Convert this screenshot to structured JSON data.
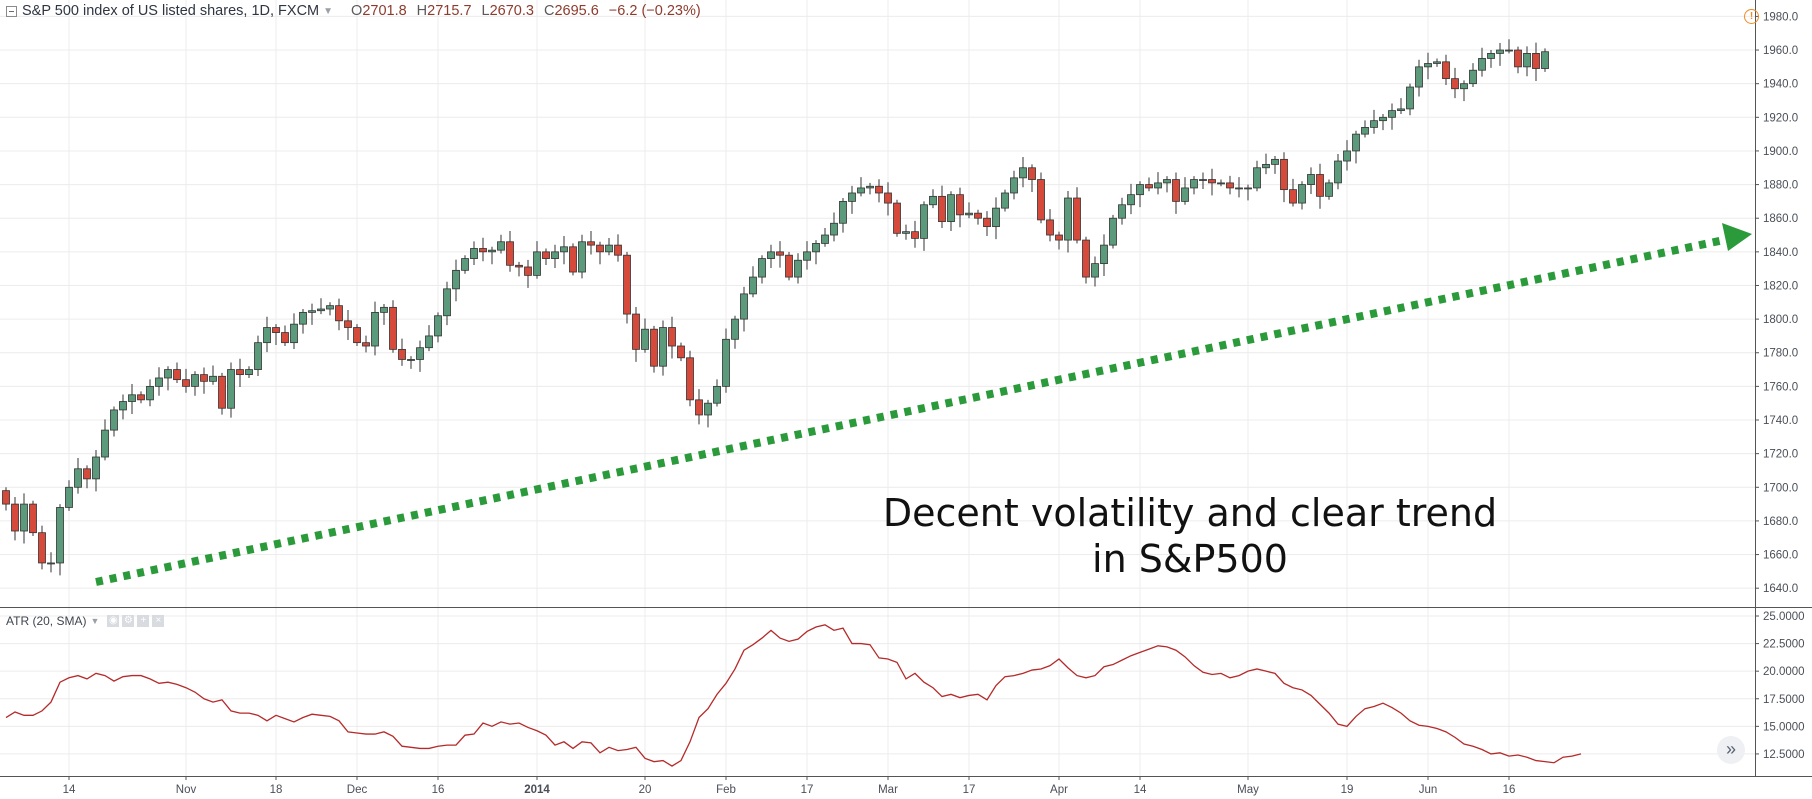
{
  "header": {
    "title": "S&P 500 index of US listed shares, 1D, FXCM",
    "open_key": "O",
    "open": "2701.8",
    "high_key": "H",
    "high": "2715.7",
    "low_key": "L",
    "low": "2670.3",
    "close_key": "C",
    "close": "2695.6",
    "change": "−6.2 (−0.23%)"
  },
  "indicator": {
    "label": "ATR (20, SMA)"
  },
  "annotation": {
    "line1": "Decent volatility and clear trend",
    "line2": "in S&P500"
  },
  "colors": {
    "up": "#5b9b7b",
    "down": "#d64a3b",
    "atr_line": "#b52a2a",
    "trend_arrow": "#2a9a3a",
    "grid": "#ececec"
  },
  "chart_data": [
    {
      "type": "candlestick",
      "title": "S&P 500 index of US listed shares, 1D, FXCM",
      "ylim": [
        1630,
        1985
      ],
      "y_ticks": [
        1640,
        1660,
        1680,
        1700,
        1720,
        1740,
        1760,
        1780,
        1800,
        1820,
        1840,
        1860,
        1880,
        1900,
        1920,
        1940,
        1960,
        1980
      ],
      "y_tick_labels": [
        "1640.0",
        "1660.0",
        "1680.0",
        "1700.0",
        "1720.0",
        "1740.0",
        "1760.0",
        "1780.0",
        "1800.0",
        "1820.0",
        "1840.0",
        "1860.0",
        "1880.0",
        "1900.0",
        "1920.0",
        "1940.0",
        "1960.0",
        "1980.0"
      ],
      "x_tick_labels": [
        {
          "label": "14",
          "index": 7
        },
        {
          "label": "Nov",
          "index": 20
        },
        {
          "label": "18",
          "index": 30
        },
        {
          "label": "Dec",
          "index": 39
        },
        {
          "label": "16",
          "index": 48
        },
        {
          "label": "2014",
          "index": 59
        },
        {
          "label": "20",
          "index": 71
        },
        {
          "label": "Feb",
          "index": 80
        },
        {
          "label": "17",
          "index": 89
        },
        {
          "label": "Mar",
          "index": 98
        },
        {
          "label": "17",
          "index": 107
        },
        {
          "label": "Apr",
          "index": 117
        },
        {
          "label": "14",
          "index": 126
        },
        {
          "label": "May",
          "index": 138
        },
        {
          "label": "19",
          "index": 149
        },
        {
          "label": "Jun",
          "index": 158
        },
        {
          "label": "16",
          "index": 167
        }
      ],
      "closes": [
        1690,
        1674,
        1690,
        1673,
        1655,
        1655,
        1688,
        1700,
        1711,
        1705,
        1718,
        1734,
        1746,
        1751,
        1755,
        1752,
        1760,
        1765,
        1770,
        1764,
        1760,
        1767,
        1763,
        1766,
        1747,
        1770,
        1767,
        1770,
        1786,
        1795,
        1792,
        1786,
        1797,
        1804,
        1805,
        1806,
        1808,
        1799,
        1795,
        1786,
        1784,
        1804,
        1807,
        1782,
        1776,
        1776,
        1783,
        1790,
        1802,
        1818,
        1829,
        1836,
        1842,
        1840,
        1841,
        1846,
        1832,
        1831,
        1826,
        1840,
        1836,
        1840,
        1843,
        1828,
        1846,
        1844,
        1840,
        1844,
        1838,
        1803,
        1782,
        1794,
        1772,
        1795,
        1784,
        1777,
        1752,
        1743,
        1750,
        1760,
        1788,
        1800,
        1815,
        1825,
        1836,
        1840,
        1838,
        1825,
        1835,
        1840,
        1845,
        1850,
        1857,
        1870,
        1875,
        1878,
        1879,
        1875,
        1869,
        1851,
        1852,
        1848,
        1868,
        1873,
        1858,
        1874,
        1862,
        1863,
        1860,
        1855,
        1866,
        1875,
        1884,
        1890,
        1883,
        1859,
        1850,
        1847,
        1872,
        1847,
        1825,
        1833,
        1844,
        1860,
        1868,
        1874,
        1880,
        1878,
        1881,
        1883,
        1870,
        1878,
        1883,
        1883,
        1881,
        1881,
        1878,
        1878,
        1878,
        1890,
        1892,
        1895,
        1877,
        1869,
        1880,
        1886,
        1873,
        1881,
        1894,
        1900,
        1910,
        1914,
        1918,
        1920,
        1924,
        1925,
        1938,
        1950,
        1952,
        1953,
        1943,
        1937,
        1940,
        1948,
        1955,
        1958,
        1960,
        1960,
        1950,
        1958,
        1949,
        1959
      ]
    },
    {
      "type": "line",
      "title": "ATR (20, SMA)",
      "series_name": "ATR",
      "ylim": [
        10.5,
        25.0
      ],
      "y_ticks": [
        12.5,
        15,
        17.5,
        20,
        22.5,
        25
      ],
      "y_tick_labels": [
        "12.5000",
        "15.0000",
        "17.5000",
        "20.0000",
        "22.5000",
        "25.0000"
      ],
      "values": [
        15.8,
        16.3,
        16.0,
        16.0,
        16.4,
        17.2,
        19.0,
        19.4,
        19.6,
        19.3,
        19.8,
        19.6,
        19.1,
        19.5,
        19.6,
        19.6,
        19.3,
        18.9,
        19.0,
        18.8,
        18.5,
        18.1,
        17.5,
        17.2,
        17.4,
        16.4,
        16.2,
        16.2,
        16.0,
        15.5,
        16.0,
        15.7,
        15.4,
        15.8,
        16.1,
        16.0,
        15.9,
        15.5,
        14.5,
        14.4,
        14.3,
        14.3,
        14.5,
        14.1,
        13.2,
        13.1,
        13.0,
        13.0,
        13.2,
        13.3,
        13.3,
        14.2,
        14.3,
        15.3,
        15.0,
        15.4,
        15.2,
        15.3,
        14.9,
        14.6,
        14.2,
        13.3,
        13.6,
        13.0,
        13.6,
        13.5,
        12.6,
        13.1,
        12.8,
        12.9,
        13.1,
        12.1,
        11.8,
        11.9,
        11.4,
        11.9,
        13.6,
        15.8,
        16.6,
        17.9,
        18.9,
        20.2,
        21.9,
        22.4,
        23.0,
        23.7,
        23.0,
        22.7,
        22.9,
        23.6,
        24.0,
        24.2,
        23.7,
        23.9,
        22.5,
        22.5,
        22.4,
        21.2,
        21.1,
        20.8,
        19.3,
        19.8,
        19.0,
        18.5,
        17.7,
        17.9,
        17.6,
        17.8,
        17.9,
        17.4,
        18.7,
        19.5,
        19.6,
        19.8,
        20.1,
        20.2,
        20.5,
        21.1,
        20.3,
        19.6,
        19.4,
        19.6,
        20.4,
        20.6,
        21.0,
        21.4,
        21.7,
        22.0,
        22.3,
        22.2,
        21.9,
        21.3,
        20.5,
        19.9,
        19.7,
        19.8,
        19.4,
        19.6,
        20.0,
        20.2,
        20.0,
        19.8,
        18.9,
        18.5,
        18.3,
        17.8,
        17.0,
        16.2,
        15.2,
        15.0,
        15.9,
        16.6,
        16.8,
        17.1,
        16.7,
        16.2,
        15.5,
        15.1,
        15.0,
        14.8,
        14.5,
        14.0,
        13.4,
        13.2,
        12.9,
        12.5,
        12.6,
        12.3,
        12.4,
        12.2,
        11.9,
        11.8,
        11.7,
        12.2,
        12.3,
        12.5
      ]
    }
  ]
}
